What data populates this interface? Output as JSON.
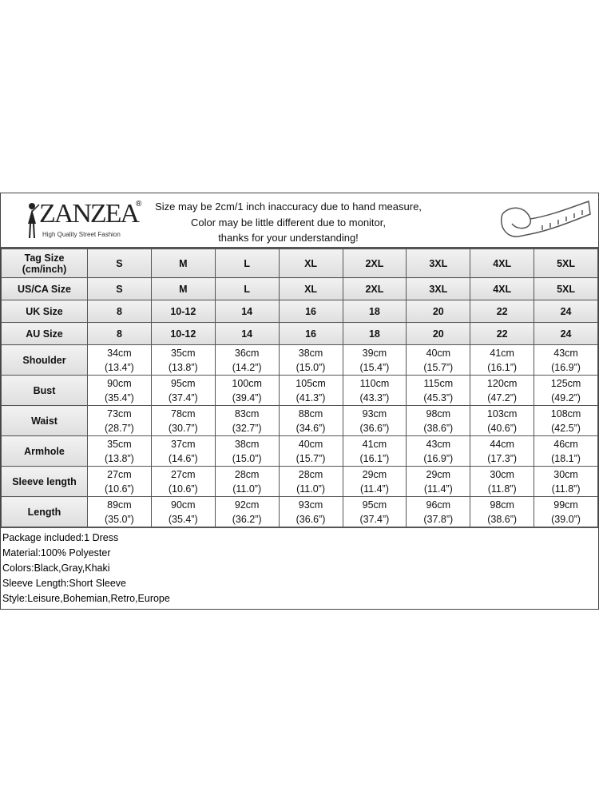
{
  "header": {
    "brand": "ZANZEA",
    "tagline": "High Quality Street Fashion",
    "notice": [
      "Size may be 2cm/1 inch inaccuracy due to hand measure,",
      "Color may be little different due to monitor,",
      "thanks for your understanding!"
    ],
    "icon": "measuring-tape-icon"
  },
  "size_rows": [
    {
      "label": "Tag Size (cm/inch)",
      "values": [
        "S",
        "M",
        "L",
        "XL",
        "2XL",
        "3XL",
        "4XL",
        "5XL"
      ]
    },
    {
      "label": "US/CA Size",
      "values": [
        "S",
        "M",
        "L",
        "XL",
        "2XL",
        "3XL",
        "4XL",
        "5XL"
      ]
    },
    {
      "label": "UK Size",
      "values": [
        "8",
        "10-12",
        "14",
        "16",
        "18",
        "20",
        "22",
        "24"
      ]
    },
    {
      "label": "AU Size",
      "values": [
        "8",
        "10-12",
        "14",
        "16",
        "18",
        "20",
        "22",
        "24"
      ]
    }
  ],
  "measure_rows": [
    {
      "label": "Shoulder",
      "cm": [
        "34cm",
        "35cm",
        "36cm",
        "38cm",
        "39cm",
        "40cm",
        "41cm",
        "43cm"
      ],
      "inch": [
        "(13.4”)",
        "(13.8”)",
        "(14.2”)",
        "(15.0”)",
        "(15.4”)",
        "(15.7”)",
        "(16.1”)",
        "(16.9”)"
      ]
    },
    {
      "label": "Bust",
      "cm": [
        "90cm",
        "95cm",
        "100cm",
        "105cm",
        "110cm",
        "115cm",
        "120cm",
        "125cm"
      ],
      "inch": [
        "(35.4”)",
        "(37.4”)",
        "(39.4”)",
        "(41.3”)",
        "(43.3”)",
        "(45.3”)",
        "(47.2”)",
        "(49.2”)"
      ]
    },
    {
      "label": "Waist",
      "cm": [
        "73cm",
        "78cm",
        "83cm",
        "88cm",
        "93cm",
        "98cm",
        "103cm",
        "108cm"
      ],
      "inch": [
        "(28.7”)",
        "(30.7”)",
        "(32.7”)",
        "(34.6”)",
        "(36.6”)",
        "(38.6”)",
        "(40.6”)",
        "(42.5”)"
      ]
    },
    {
      "label": "Armhole",
      "cm": [
        "35cm",
        "37cm",
        "38cm",
        "40cm",
        "41cm",
        "43cm",
        "44cm",
        "46cm"
      ],
      "inch": [
        "(13.8”)",
        "(14.6”)",
        "(15.0”)",
        "(15.7”)",
        "(16.1”)",
        "(16.9”)",
        "(17.3”)",
        "(18.1”)"
      ]
    },
    {
      "label": "Sleeve length",
      "cm": [
        "27cm",
        "27cm",
        "28cm",
        "28cm",
        "29cm",
        "29cm",
        "30cm",
        "30cm"
      ],
      "inch": [
        "(10.6”)",
        "(10.6”)",
        "(11.0”)",
        "(11.0”)",
        "(11.4”)",
        "(11.4”)",
        "(11.8”)",
        "(11.8”)"
      ]
    },
    {
      "label": "Length",
      "cm": [
        "89cm",
        "90cm",
        "92cm",
        "93cm",
        "95cm",
        "96cm",
        "98cm",
        "99cm"
      ],
      "inch": [
        "(35.0”)",
        "(35.4”)",
        "(36.2”)",
        "(36.6”)",
        "(37.4”)",
        "(37.8”)",
        "(38.6”)",
        "(39.0”)"
      ]
    }
  ],
  "notes": [
    "Package included:1 Dress",
    "Material:100% Polyester",
    "Colors:Black,Gray,Khaki",
    "Sleeve Length:Short Sleeve",
    "Style:Leisure,Bohemian,Retro,Europe"
  ]
}
